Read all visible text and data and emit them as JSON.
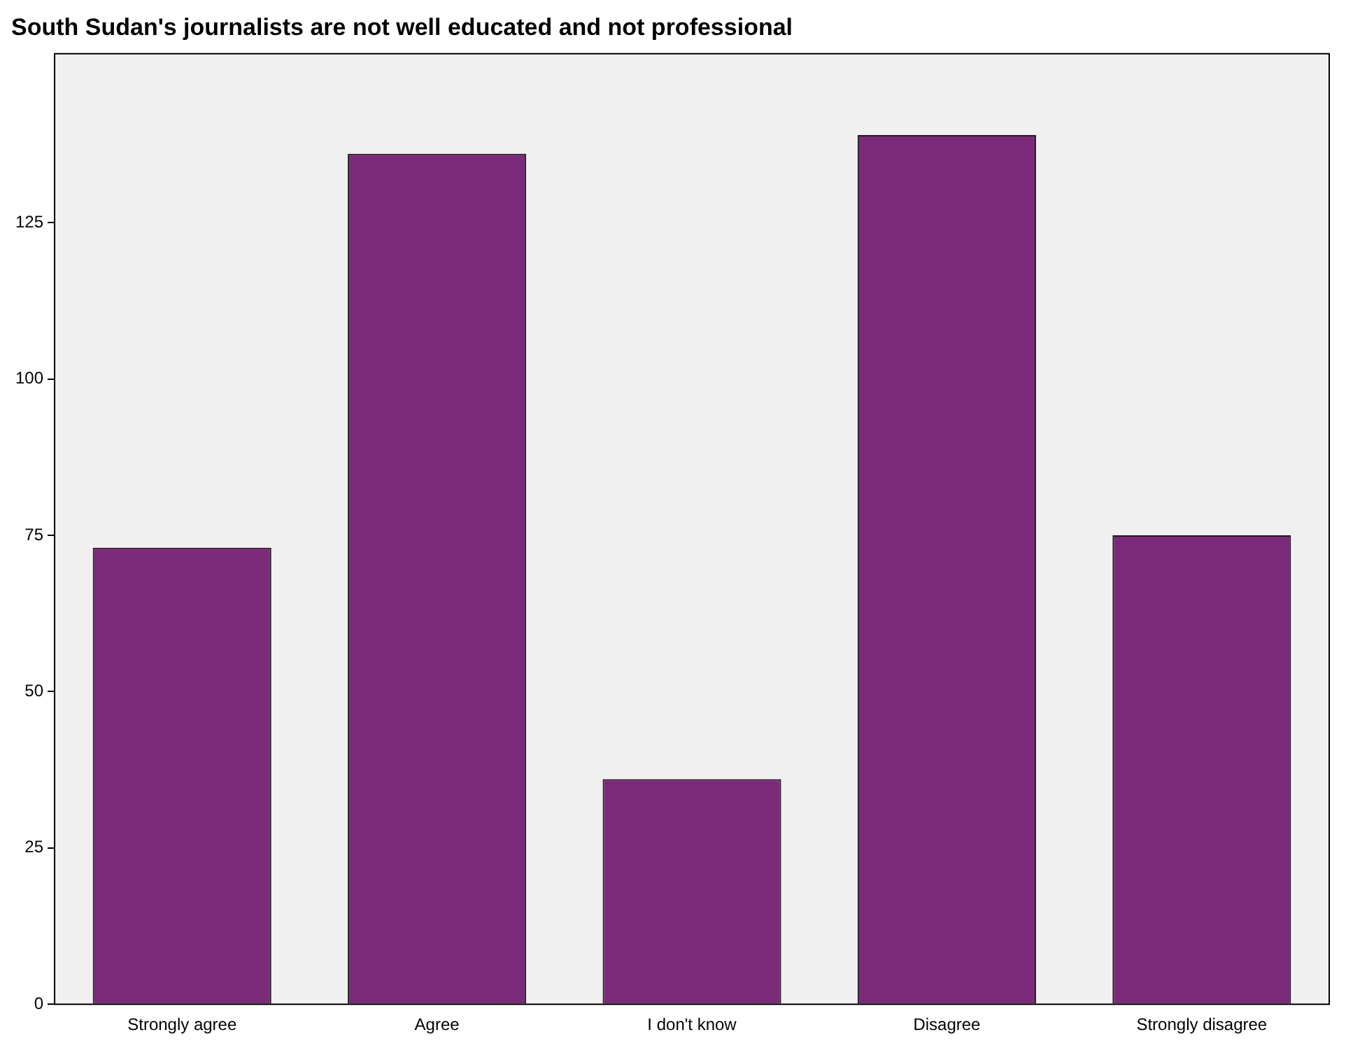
{
  "chart_data": {
    "type": "bar",
    "title": "South Sudan's journalists are not well educated and not professional",
    "categories": [
      "Strongly agree",
      "Agree",
      "I don't know",
      "Disagree",
      "Strongly disagree"
    ],
    "values": [
      73,
      136,
      36,
      139,
      75
    ],
    "color": "#7b2a7a",
    "ylim": [
      0,
      152
    ],
    "yticks": [
      0,
      25,
      50,
      75,
      100,
      125
    ],
    "grid": false,
    "legend": false
  }
}
